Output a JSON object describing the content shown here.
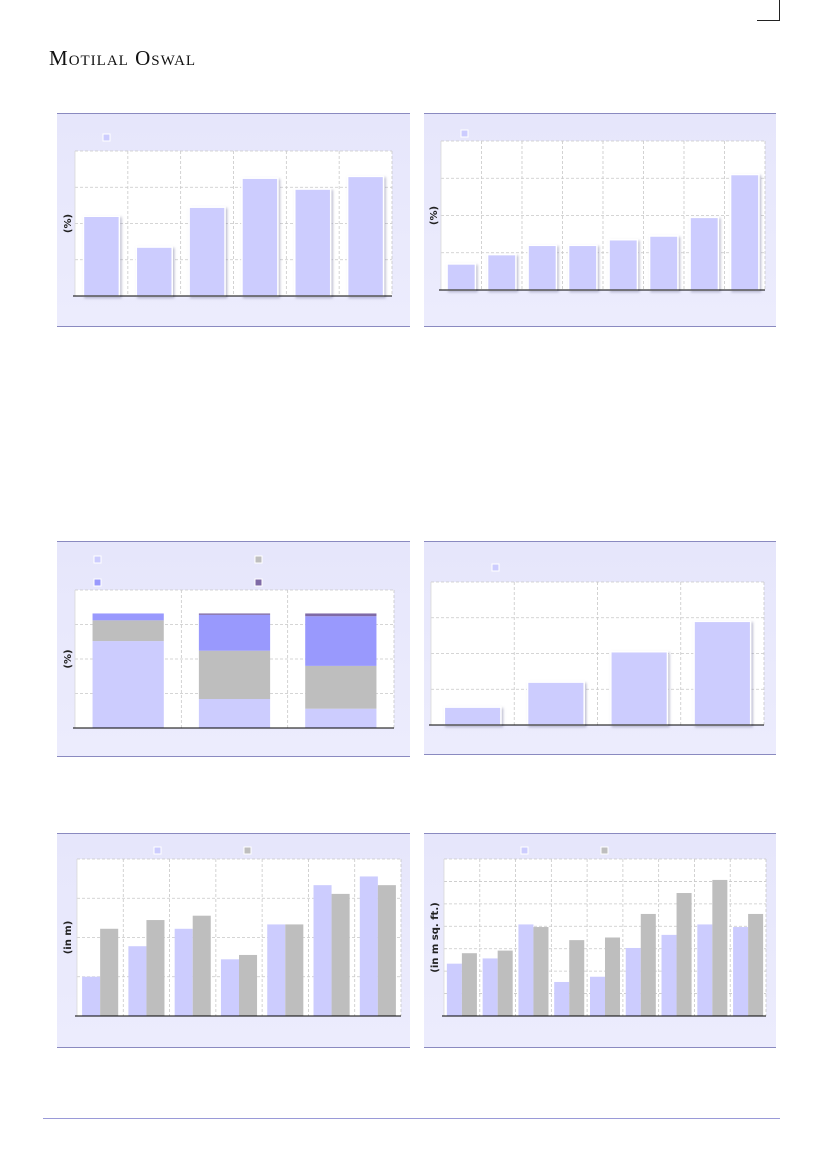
{
  "header": {
    "logo_text": "Motilal Oswal"
  },
  "colors": {
    "series1": "#ccccfe",
    "series2": "#bebebe",
    "series3": "#9999fd",
    "series4": "#7f6aa6"
  },
  "charts": [
    {
      "id": "chart1",
      "chart_data": {
        "type": "bar",
        "categories": [
          "",
          "",
          "",
          "",
          "",
          ""
        ],
        "series": [
          {
            "name": "",
            "values": [
              22,
              13.5,
              24.5,
              32.5,
              29.5,
              33
            ]
          }
        ],
        "ylabel": "(%)",
        "ylim": [
          0,
          40
        ],
        "grid": true,
        "legend": "top-left"
      }
    },
    {
      "id": "chart2",
      "chart_data": {
        "type": "bar",
        "categories": [
          "",
          "",
          "",
          "",
          "",
          "",
          "",
          ""
        ],
        "series": [
          {
            "name": "",
            "values": [
              7,
              9.5,
              12,
              12,
              13.5,
              14.5,
              19.5,
              31
            ]
          }
        ],
        "ylabel": "(%)",
        "ylim": [
          0,
          40
        ],
        "grid": true,
        "legend": "top-left"
      }
    },
    {
      "id": "chart3",
      "chart_data": {
        "type": "bar",
        "stacked": true,
        "categories": [
          "",
          "",
          ""
        ],
        "series": [
          {
            "name": "",
            "values": [
              63,
              21,
              14
            ]
          },
          {
            "name": "",
            "values": [
              15,
              35,
              31
            ]
          },
          {
            "name": "",
            "values": [
              5,
              26,
              36
            ]
          },
          {
            "name": "",
            "values": [
              0,
              1,
              2
            ]
          }
        ],
        "ylabel": "(%)",
        "ylim": [
          0,
          100
        ],
        "grid": true,
        "legend": "top"
      }
    },
    {
      "id": "chart4",
      "chart_data": {
        "type": "bar",
        "categories": [
          "",
          "",
          "",
          ""
        ],
        "series": [
          {
            "name": "",
            "values": [
              5,
              12,
              20.5,
              29
            ]
          }
        ],
        "ylabel": "",
        "ylim": [
          0,
          40
        ],
        "grid": true,
        "legend": "top-left"
      }
    },
    {
      "id": "chart5",
      "chart_data": {
        "type": "bar",
        "categories": [
          "",
          "",
          "",
          "",
          "",
          "",
          ""
        ],
        "series": [
          {
            "name": "",
            "values": [
              4.5,
              8,
              10,
              6.5,
              10.5,
              15,
              16
            ]
          },
          {
            "name": "",
            "values": [
              10,
              11,
              11.5,
              7,
              10.5,
              14,
              15
            ]
          }
        ],
        "ylabel": "(in m)",
        "ylim": [
          0,
          18
        ],
        "grid": true,
        "legend": "top"
      }
    },
    {
      "id": "chart6",
      "chart_data": {
        "type": "bar",
        "categories": [
          "",
          "",
          "",
          "",
          "",
          "",
          "",
          "",
          ""
        ],
        "series": [
          {
            "name": "",
            "values": [
              10,
              11,
              17.5,
              6.5,
              7.5,
              13,
              15.5,
              17.5,
              17
            ]
          },
          {
            "name": "",
            "values": [
              12,
              12.5,
              17,
              14.5,
              15,
              19.5,
              23.5,
              26,
              19.5
            ]
          }
        ],
        "ylabel": "(in m sq. ft.)",
        "ylim": [
          0,
          30
        ],
        "grid": true,
        "legend": "top"
      }
    }
  ]
}
